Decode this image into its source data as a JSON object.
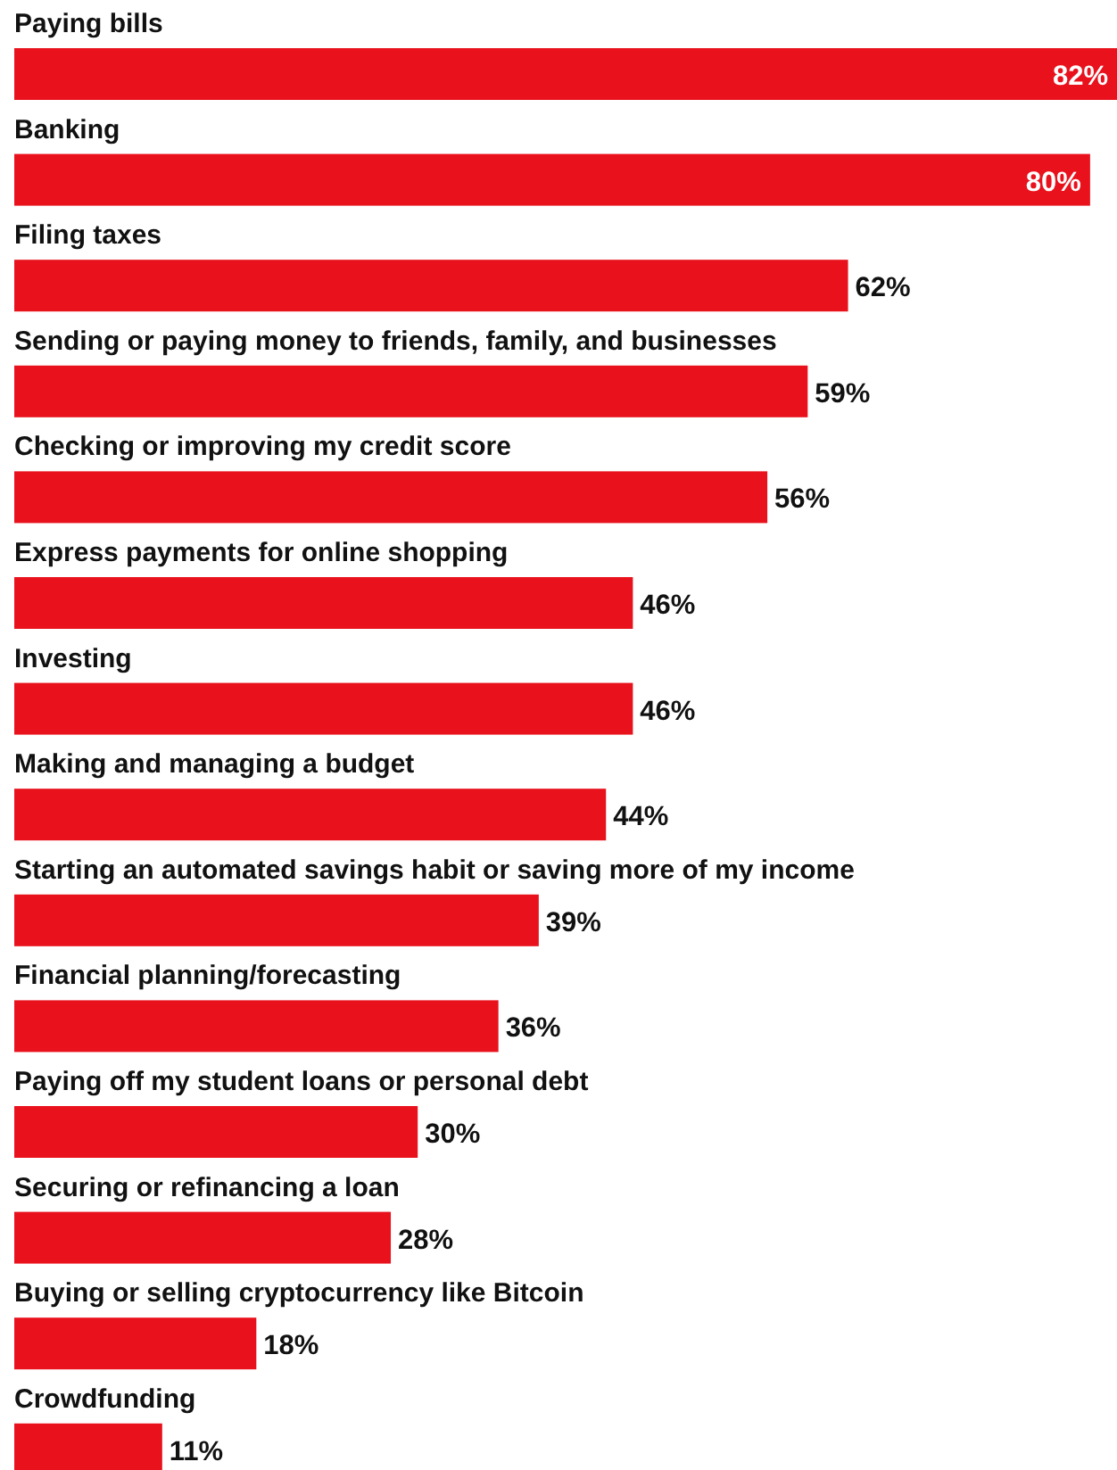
{
  "chart_data": {
    "type": "bar",
    "orientation": "horizontal",
    "color": "#e8111c",
    "categories": [
      "Paying bills",
      "Banking",
      "Filing taxes",
      "Sending or paying money to friends, family, and businesses",
      "Checking or improving my credit score",
      "Express payments for online shopping",
      "Investing",
      "Making and managing a budget",
      "Starting an automated savings habit or saving more of my income",
      "Financial planning/forecasting",
      "Paying off my student loans or personal debt",
      "Securing or refinancing a loan",
      "Buying or selling cryptocurrency like Bitcoin",
      "Crowdfunding"
    ],
    "values": [
      82,
      80,
      62,
      59,
      56,
      46,
      46,
      44,
      39,
      36,
      30,
      28,
      18,
      11
    ],
    "value_labels": [
      "82%",
      "80%",
      "62%",
      "59%",
      "56%",
      "46%",
      "46%",
      "44%",
      "39%",
      "36%",
      "30%",
      "28%",
      "18%",
      "11%"
    ]
  }
}
